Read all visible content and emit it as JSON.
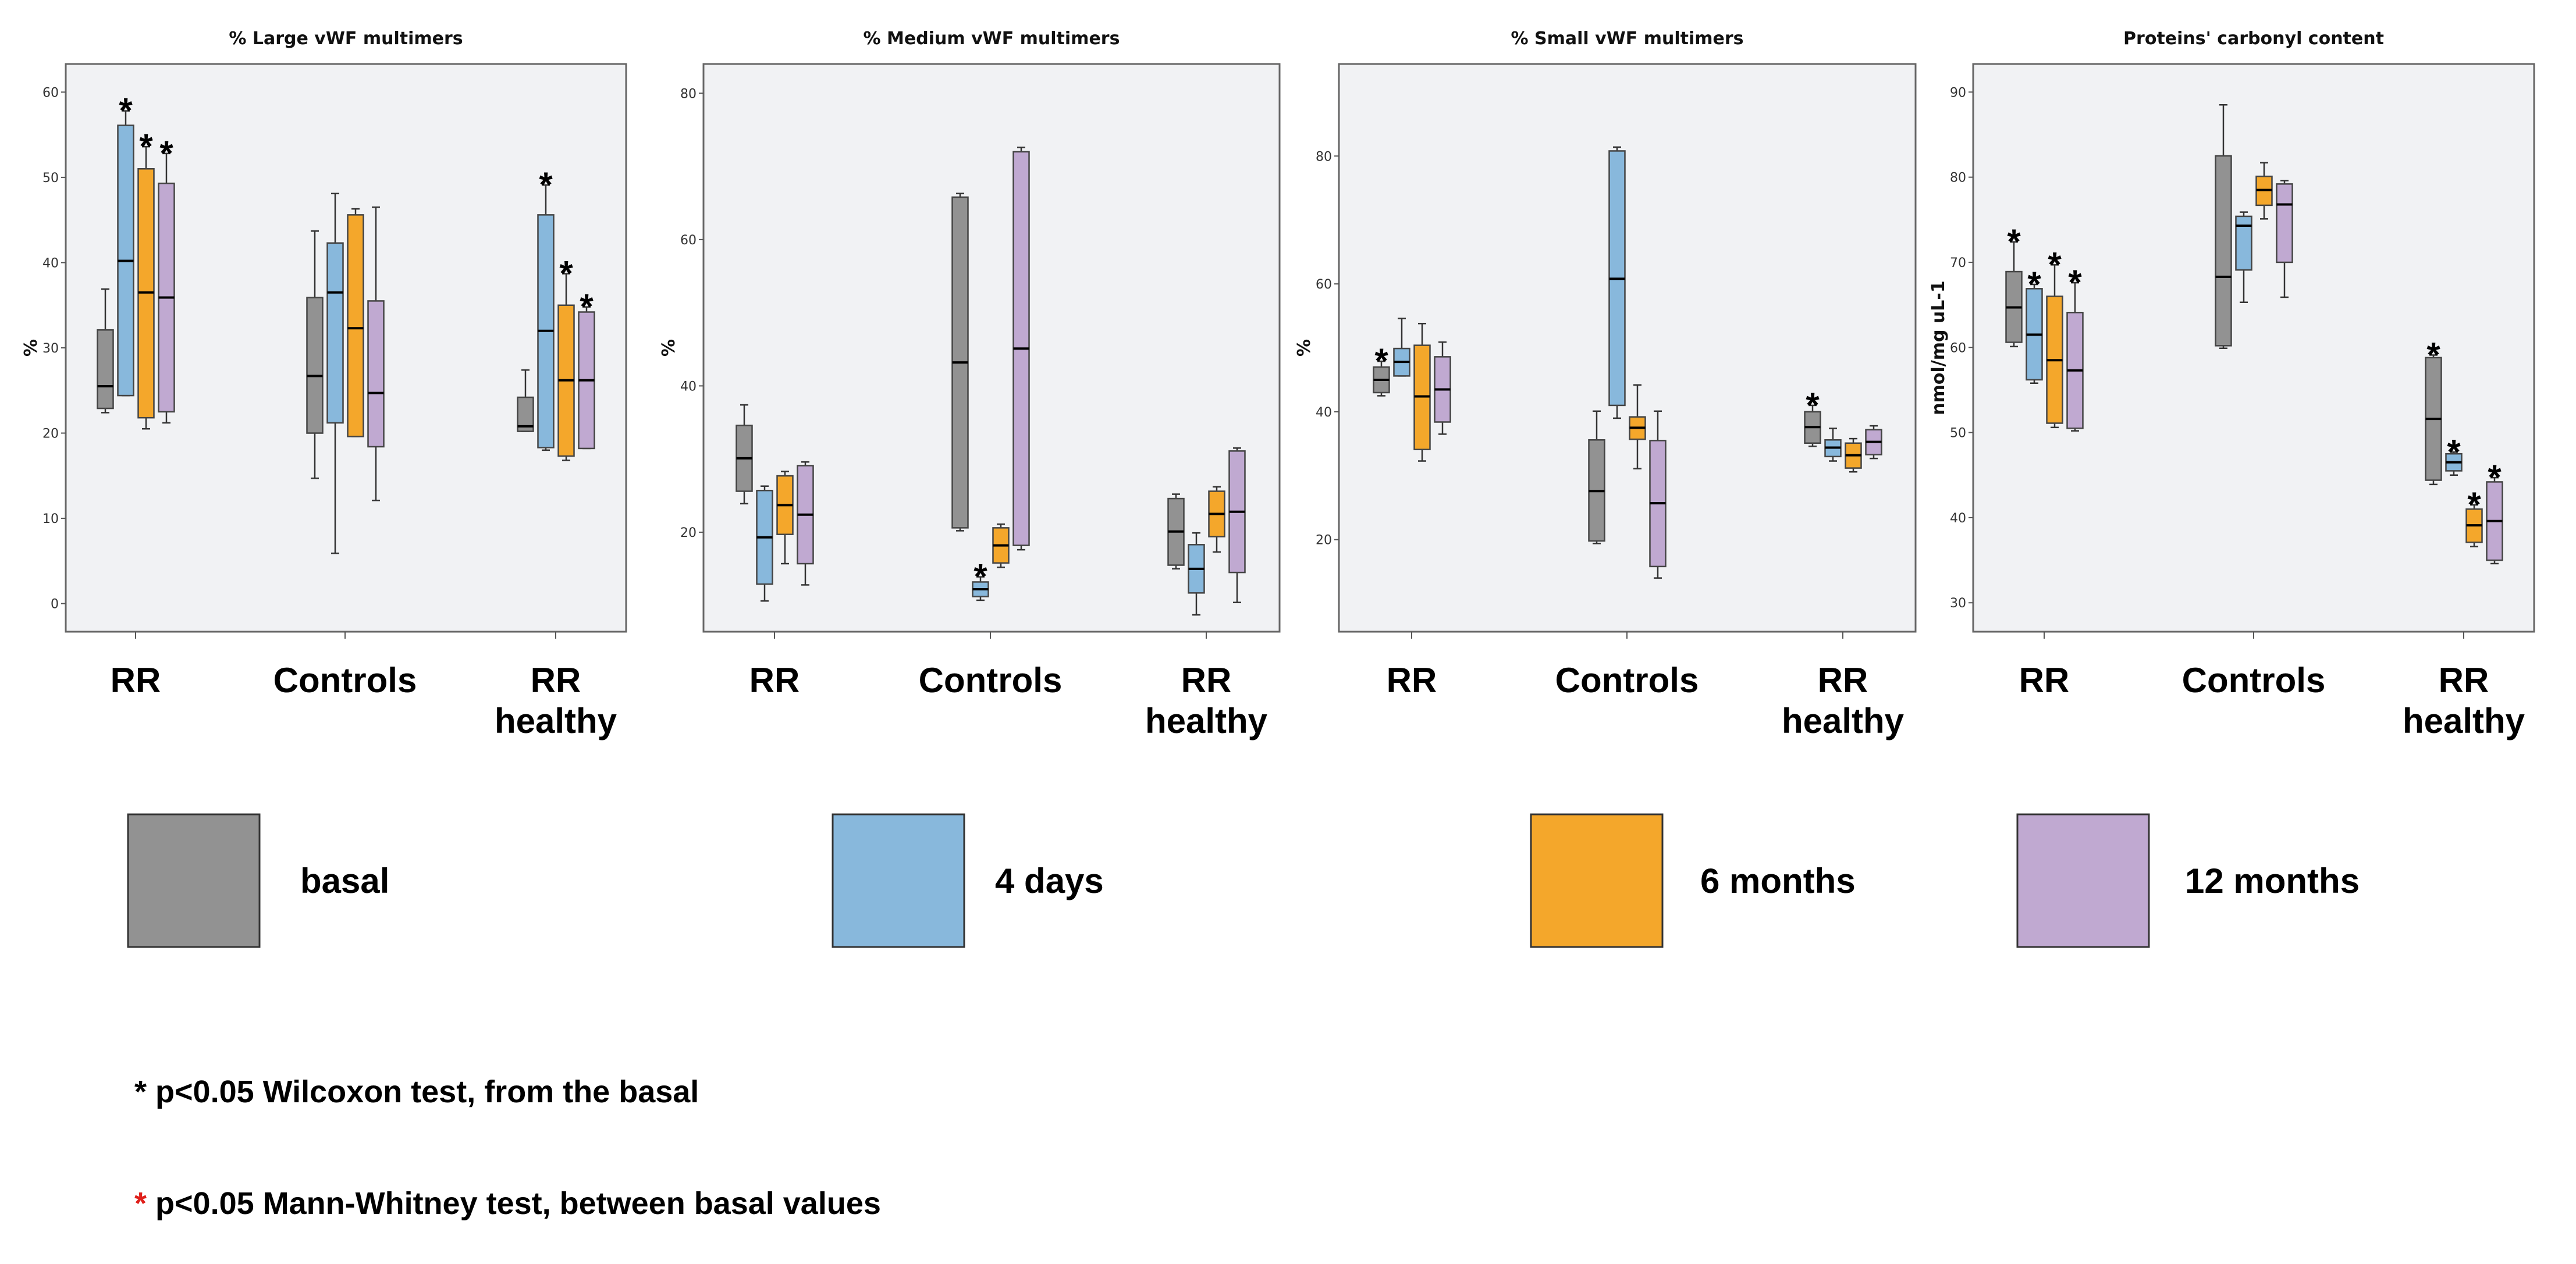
{
  "chart_data": [
    {
      "type": "box",
      "title": "% Large vWF multimers",
      "ylabel": "%",
      "ylim": [
        -3.3,
        63.3
      ],
      "yticks": [
        0,
        10,
        20,
        30,
        40,
        50,
        60
      ],
      "categories": [
        "RR",
        "Controls",
        "RR\nhealthy"
      ],
      "series_order": [
        "basal",
        "4 days",
        "6 months",
        "12 months"
      ],
      "boxes": [
        [
          [
            22.4,
            22.9,
            25.5,
            32.1,
            36.9,
            null
          ],
          [
            24.4,
            24.4,
            40.2,
            56.1,
            57.8,
            "black"
          ],
          [
            20.5,
            21.8,
            36.5,
            51.0,
            53.6,
            "black"
          ],
          [
            21.2,
            22.5,
            35.9,
            49.3,
            52.8,
            "black"
          ]
        ],
        [
          [
            14.7,
            20.0,
            26.7,
            35.9,
            43.7,
            null
          ],
          [
            5.9,
            21.2,
            36.5,
            42.3,
            48.1,
            null
          ],
          [
            19.6,
            19.6,
            32.3,
            45.6,
            46.3,
            null
          ],
          [
            12.1,
            18.4,
            24.7,
            35.5,
            46.5,
            null
          ]
        ],
        [
          [
            20.2,
            20.2,
            20.8,
            24.2,
            27.4,
            null
          ],
          [
            18.0,
            18.3,
            32.0,
            45.6,
            49.1,
            "black"
          ],
          [
            16.8,
            17.3,
            26.2,
            35.0,
            38.7,
            "black"
          ],
          [
            18.2,
            18.2,
            26.2,
            34.2,
            34.8,
            "black"
          ]
        ]
      ]
    },
    {
      "type": "box",
      "title": "% Medium vWF multimers",
      "ylabel": "%",
      "ylim": [
        6.4,
        84
      ],
      "yticks": [
        20,
        40,
        60,
        80
      ],
      "categories": [
        "RR",
        "Controls",
        "RR\nhealthy"
      ],
      "series_order": [
        "basal",
        "4 days",
        "6 months",
        "12 months"
      ],
      "boxes": [
        [
          [
            23.9,
            25.6,
            30.1,
            34.6,
            37.4,
            null
          ],
          [
            10.6,
            12.9,
            19.3,
            25.7,
            26.3,
            null
          ],
          [
            15.7,
            19.7,
            23.7,
            27.7,
            28.3,
            null
          ],
          [
            12.8,
            15.7,
            22.4,
            29.1,
            29.6,
            null
          ]
        ],
        [
          [
            20.2,
            20.6,
            43.2,
            65.8,
            66.3,
            null
          ],
          [
            10.7,
            11.2,
            12.2,
            13.2,
            13.9,
            "black"
          ],
          [
            15.2,
            15.8,
            18.2,
            20.6,
            21.1,
            null
          ],
          [
            17.6,
            18.2,
            45.1,
            72.0,
            72.6,
            null
          ]
        ],
        [
          [
            15.0,
            15.5,
            20.1,
            24.6,
            25.2,
            null
          ],
          [
            8.7,
            11.7,
            15.0,
            18.3,
            19.9,
            null
          ],
          [
            17.3,
            19.4,
            22.5,
            25.6,
            26.2,
            null
          ],
          [
            10.4,
            14.5,
            22.8,
            31.1,
            31.5,
            null
          ]
        ]
      ]
    },
    {
      "type": "box",
      "title": "% Small vWF multimers",
      "ylabel": "%",
      "ylim": [
        5.6,
        94.4
      ],
      "yticks": [
        20,
        40,
        60,
        80
      ],
      "categories": [
        "RR",
        "Controls",
        "RR\nhealthy"
      ],
      "series_order": [
        "basal",
        "4 days",
        "6 months",
        "12 months"
      ],
      "boxes": [
        [
          [
            42.5,
            43.0,
            45.0,
            47.0,
            47.9,
            "red"
          ],
          [
            45.6,
            45.6,
            47.8,
            49.9,
            54.6,
            null
          ],
          [
            32.3,
            34.1,
            42.4,
            50.4,
            53.8,
            null
          ],
          [
            36.5,
            38.4,
            43.5,
            48.6,
            50.9,
            null
          ]
        ],
        [
          [
            19.4,
            19.8,
            27.6,
            35.6,
            40.1,
            null
          ],
          [
            39.0,
            41.0,
            60.8,
            80.8,
            81.4,
            null
          ],
          [
            31.1,
            35.7,
            37.5,
            39.2,
            44.2,
            null
          ],
          [
            14.0,
            15.8,
            25.7,
            35.5,
            40.1,
            null
          ]
        ],
        [
          [
            34.6,
            35.1,
            37.6,
            40.0,
            41.0,
            "red"
          ],
          [
            32.3,
            33.0,
            34.4,
            35.6,
            37.4,
            null
          ],
          [
            30.6,
            31.2,
            33.2,
            35.1,
            35.8,
            null
          ],
          [
            32.7,
            33.3,
            35.3,
            37.2,
            37.8,
            null
          ]
        ]
      ]
    },
    {
      "type": "box",
      "title": "Proteins' carbonyl content",
      "ylabel": "nmol/mg uL-1",
      "ylim": [
        26.6,
        93.3
      ],
      "yticks": [
        30,
        40,
        50,
        60,
        70,
        80,
        90
      ],
      "categories": [
        "RR",
        "Controls",
        "RR\nhealthy"
      ],
      "series_order": [
        "basal",
        "4 days",
        "6 months",
        "12 months"
      ],
      "boxes": [
        [
          [
            60.1,
            60.6,
            64.7,
            68.9,
            72.4,
            "red"
          ],
          [
            55.8,
            56.2,
            61.5,
            66.9,
            67.4,
            "black"
          ],
          [
            50.6,
            51.1,
            58.5,
            66.0,
            69.7,
            "black"
          ],
          [
            50.2,
            50.5,
            57.3,
            64.1,
            67.6,
            "black"
          ]
        ],
        [
          [
            59.9,
            60.2,
            68.3,
            82.5,
            88.5,
            null
          ],
          [
            65.3,
            69.1,
            74.3,
            75.4,
            75.9,
            null
          ],
          [
            75.1,
            76.7,
            78.5,
            80.1,
            81.7,
            null
          ],
          [
            65.9,
            70.0,
            76.8,
            79.2,
            79.6,
            null
          ]
        ],
        [
          [
            43.9,
            44.4,
            51.6,
            58.8,
            59.1,
            "red"
          ],
          [
            45.0,
            45.5,
            46.5,
            47.5,
            47.7,
            "black"
          ],
          [
            36.6,
            37.1,
            39.1,
            41.0,
            41.5,
            "black"
          ],
          [
            34.6,
            35.0,
            39.6,
            44.2,
            44.7,
            "black"
          ]
        ]
      ]
    }
  ],
  "legend": [
    {
      "label": "basal",
      "color": "#929292"
    },
    {
      "label": "4 days",
      "color": "#88b8dc"
    },
    {
      "label": "6 months",
      "color": "#f4a72b"
    },
    {
      "label": "12 months",
      "color": "#c0a9d1"
    }
  ],
  "notes": {
    "black_star": "*",
    "black_text": " p<0.05 Wilcoxon test, from the basal",
    "red_star": "*",
    "red_text": " p<0.05 Mann-Whitney test, between basal values"
  },
  "colors": {
    "plot_bg": "#f1f2f4",
    "red_star": "#e0201b",
    "black_star": "#000000"
  }
}
